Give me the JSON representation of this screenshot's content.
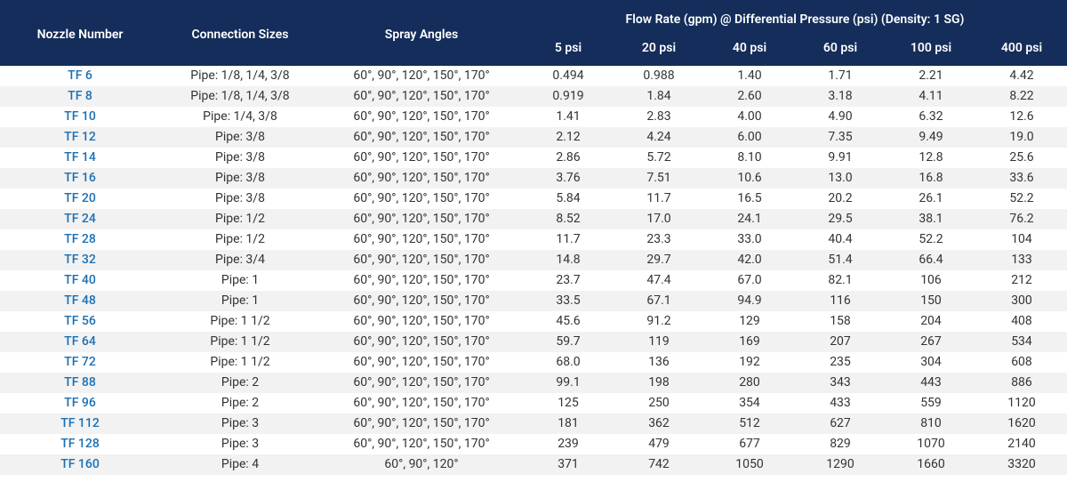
{
  "colors": {
    "header_bg": "#142d5a",
    "header_text": "#ffffff",
    "row_even_bg": "#ffffff",
    "row_odd_bg": "#f2f2f2",
    "link_color": "#1a6fb3",
    "body_text": "#333333"
  },
  "typography": {
    "font_family": "Segoe UI, sans-serif",
    "header_fontsize_pt": 11,
    "body_fontsize_pt": 10.5
  },
  "columns": {
    "nozzle": "Nozzle Number",
    "connection": "Connection Sizes",
    "spray": "Spray Angles",
    "flow_group": "Flow Rate (gpm) @ Differential Pressure (psi) (Density: 1 SG)",
    "psi": [
      "5 psi",
      "20 psi",
      "40 psi",
      "60 psi",
      "100 psi",
      "400 psi"
    ]
  },
  "rows": [
    {
      "nozzle": "TF 6",
      "connection": "Pipe: 1/8, 1/4, 3/8",
      "spray": "60°, 90°, 120°, 150°, 170°",
      "v": [
        "0.494",
        "0.988",
        "1.40",
        "1.71",
        "2.21",
        "4.42"
      ]
    },
    {
      "nozzle": "TF 8",
      "connection": "Pipe: 1/8, 1/4, 3/8",
      "spray": "60°, 90°, 120°, 150°, 170°",
      "v": [
        "0.919",
        "1.84",
        "2.60",
        "3.18",
        "4.11",
        "8.22"
      ]
    },
    {
      "nozzle": "TF 10",
      "connection": "Pipe: 1/4, 3/8",
      "spray": "60°, 90°, 120°, 150°, 170°",
      "v": [
        "1.41",
        "2.83",
        "4.00",
        "4.90",
        "6.32",
        "12.6"
      ]
    },
    {
      "nozzle": "TF 12",
      "connection": "Pipe: 3/8",
      "spray": "60°, 90°, 120°, 150°, 170°",
      "v": [
        "2.12",
        "4.24",
        "6.00",
        "7.35",
        "9.49",
        "19.0"
      ]
    },
    {
      "nozzle": "TF 14",
      "connection": "Pipe: 3/8",
      "spray": "60°, 90°, 120°, 150°, 170°",
      "v": [
        "2.86",
        "5.72",
        "8.10",
        "9.91",
        "12.8",
        "25.6"
      ]
    },
    {
      "nozzle": "TF 16",
      "connection": "Pipe: 3/8",
      "spray": "60°, 90°, 120°, 150°, 170°",
      "v": [
        "3.76",
        "7.51",
        "10.6",
        "13.0",
        "16.8",
        "33.6"
      ]
    },
    {
      "nozzle": "TF 20",
      "connection": "Pipe: 3/8",
      "spray": "60°, 90°, 120°, 150°, 170°",
      "v": [
        "5.84",
        "11.7",
        "16.5",
        "20.2",
        "26.1",
        "52.2"
      ]
    },
    {
      "nozzle": "TF 24",
      "connection": "Pipe: 1/2",
      "spray": "60°, 90°, 120°, 150°, 170°",
      "v": [
        "8.52",
        "17.0",
        "24.1",
        "29.5",
        "38.1",
        "76.2"
      ]
    },
    {
      "nozzle": "TF 28",
      "connection": "Pipe: 1/2",
      "spray": "60°, 90°, 120°, 150°, 170°",
      "v": [
        "11.7",
        "23.3",
        "33.0",
        "40.4",
        "52.2",
        "104"
      ]
    },
    {
      "nozzle": "TF 32",
      "connection": "Pipe: 3/4",
      "spray": "60°, 90°, 120°, 150°, 170°",
      "v": [
        "14.8",
        "29.7",
        "42.0",
        "51.4",
        "66.4",
        "133"
      ]
    },
    {
      "nozzle": "TF 40",
      "connection": "Pipe: 1",
      "spray": "60°, 90°, 120°, 150°, 170°",
      "v": [
        "23.7",
        "47.4",
        "67.0",
        "82.1",
        "106",
        "212"
      ]
    },
    {
      "nozzle": "TF 48",
      "connection": "Pipe: 1",
      "spray": "60°, 90°, 120°, 150°, 170°",
      "v": [
        "33.5",
        "67.1",
        "94.9",
        "116",
        "150",
        "300"
      ]
    },
    {
      "nozzle": "TF 56",
      "connection": "Pipe: 1 1/2",
      "spray": "60°, 90°, 120°, 150°, 170°",
      "v": [
        "45.6",
        "91.2",
        "129",
        "158",
        "204",
        "408"
      ]
    },
    {
      "nozzle": "TF 64",
      "connection": "Pipe: 1 1/2",
      "spray": "60°, 90°, 120°, 150°, 170°",
      "v": [
        "59.7",
        "119",
        "169",
        "207",
        "267",
        "534"
      ]
    },
    {
      "nozzle": "TF 72",
      "connection": "Pipe: 1 1/2",
      "spray": "60°, 90°, 120°, 150°, 170°",
      "v": [
        "68.0",
        "136",
        "192",
        "235",
        "304",
        "608"
      ]
    },
    {
      "nozzle": "TF 88",
      "connection": "Pipe: 2",
      "spray": "60°, 90°, 120°, 150°, 170°",
      "v": [
        "99.1",
        "198",
        "280",
        "343",
        "443",
        "886"
      ]
    },
    {
      "nozzle": "TF 96",
      "connection": "Pipe: 2",
      "spray": "60°, 90°, 120°, 150°, 170°",
      "v": [
        "125",
        "250",
        "354",
        "433",
        "559",
        "1120"
      ]
    },
    {
      "nozzle": "TF 112",
      "connection": "Pipe: 3",
      "spray": "60°, 90°, 120°, 150°, 170°",
      "v": [
        "181",
        "362",
        "512",
        "627",
        "810",
        "1620"
      ]
    },
    {
      "nozzle": "TF 128",
      "connection": "Pipe: 3",
      "spray": "60°, 90°, 120°, 150°, 170°",
      "v": [
        "239",
        "479",
        "677",
        "829",
        "1070",
        "2140"
      ]
    },
    {
      "nozzle": "TF 160",
      "connection": "Pipe: 4",
      "spray": "60°, 90°, 120°",
      "v": [
        "371",
        "742",
        "1050",
        "1290",
        "1660",
        "3320"
      ]
    }
  ]
}
